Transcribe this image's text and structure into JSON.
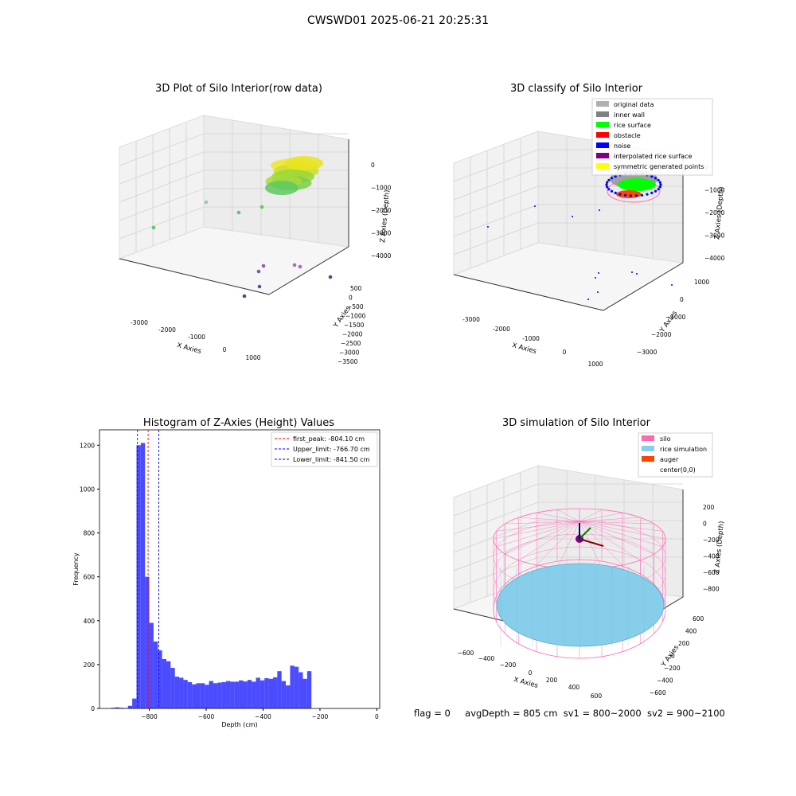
{
  "suptitle": "CWSWD01 2025-06-21 20:25:31",
  "footer": {
    "flag": "flag = 0",
    "avg_depth": "avgDepth = 805 cm",
    "sv1": "sv1 = 800~2000",
    "sv2": "sv2 = 900~2100"
  },
  "colors": {
    "hist_bar": "#0000ff",
    "first_peak_line": "#ff0000",
    "limit_lines": "#0000ff",
    "silo": "#ff69b4",
    "rice_simulation": "#87ceeb",
    "auger": "#ff4500",
    "original_data": "#b0b0b0",
    "inner_wall": "#808080",
    "rice_surface": "#00ff00",
    "obstacle": "#ff0000",
    "noise": "#0000ff",
    "interpolated_rice_surface": "#800080",
    "symmetric_generated_points": "#ffff00"
  },
  "chart_data": [
    {
      "type": "scatter",
      "subtype": "3d",
      "title": "3D Plot of Silo Interior(row data)",
      "xlabel": "X Axies",
      "ylabel": "Y Axies",
      "zlabel": "Z Axies (Depth)",
      "x_ticks": [
        "-3000",
        "-2000",
        "-1000",
        "0",
        "1000"
      ],
      "y_ticks": [
        "500",
        "0",
        "−500",
        "−1000",
        "−1500",
        "−2000",
        "−2500",
        "−3000",
        "−3500"
      ],
      "z_ticks": [
        "0",
        "−1000",
        "−2000",
        "−3000",
        "−4000"
      ],
      "grid": true
    },
    {
      "type": "scatter",
      "subtype": "3d",
      "title": "3D classify of Silo Interior",
      "xlabel": "X Axies",
      "ylabel": "Y Axies",
      "zlabel": "Z Axies (Depth)",
      "x_ticks": [
        "-3000",
        "-2000",
        "-1000",
        "0",
        "1000"
      ],
      "y_ticks": [
        "1000",
        "0",
        "−1000",
        "−2000",
        "−3000"
      ],
      "z_ticks": [
        "0",
        "−1000",
        "−2000",
        "−3000",
        "−4000"
      ],
      "legend": [
        {
          "label": "original data",
          "color": "#b0b0b0"
        },
        {
          "label": "inner wall",
          "color": "#808080"
        },
        {
          "label": "rice surface",
          "color": "#00ff00"
        },
        {
          "label": "obstacle",
          "color": "#ff0000"
        },
        {
          "label": "noise",
          "color": "#0000ff"
        },
        {
          "label": "interpolated rice surface",
          "color": "#800080"
        },
        {
          "label": "symmetric generated points",
          "color": "#ffff00"
        }
      ],
      "legend_position": "top-right",
      "grid": true
    },
    {
      "type": "bar",
      "subtype": "histogram",
      "title": "Histogram of Z-Axies (Height) Values",
      "xlabel": "Depth (cm)",
      "ylabel": "Frequency",
      "xlim": [
        -975,
        10
      ],
      "ylim": [
        0,
        1270
      ],
      "x_ticks": [
        -800,
        -600,
        -400,
        -200,
        0
      ],
      "y_ticks": [
        0,
        200,
        400,
        600,
        800,
        1000,
        1200
      ],
      "bin_width": 15,
      "bin_start": -935,
      "values": [
        3,
        5,
        3,
        2,
        12,
        45,
        1200,
        1210,
        600,
        390,
        305,
        265,
        225,
        215,
        185,
        145,
        140,
        130,
        120,
        110,
        115,
        115,
        108,
        125,
        115,
        118,
        120,
        125,
        122,
        122,
        128,
        123,
        130,
        122,
        140,
        128,
        138,
        135,
        142,
        170,
        125,
        105,
        195,
        190,
        165,
        135,
        170
      ],
      "vlines": [
        {
          "label": "first_peak: -804.10 cm",
          "x": -804.1,
          "color": "#ff0000"
        },
        {
          "label": "Upper_limit: -766.70 cm",
          "x": -766.7,
          "color": "#0000ff"
        },
        {
          "label": "Lower_limit: -841.50 cm",
          "x": -841.5,
          "color": "#0000ff"
        }
      ],
      "legend_position": "top-right",
      "grid": false
    },
    {
      "type": "scatter",
      "subtype": "3d-surface",
      "title": "3D simulation of Silo Interior",
      "xlabel": "X Axies",
      "ylabel": "Y Axies",
      "zlabel": "Z Axies (Depth)",
      "x_ticks": [
        "−600",
        "−400",
        "−200",
        "0",
        "200",
        "400",
        "600"
      ],
      "y_ticks": [
        "600",
        "400",
        "200",
        "0",
        "−200",
        "−400",
        "−600"
      ],
      "z_ticks": [
        "200",
        "0",
        "−200",
        "−400",
        "−600",
        "−800"
      ],
      "legend": [
        {
          "label": "silo",
          "color": "#ff69b4"
        },
        {
          "label": "rice simulation",
          "color": "#87ceeb"
        },
        {
          "label": "auger",
          "color": "#ff4500"
        },
        {
          "label": "center(0,0)",
          "color": ""
        }
      ],
      "legend_position": "top-right",
      "grid": true
    }
  ]
}
